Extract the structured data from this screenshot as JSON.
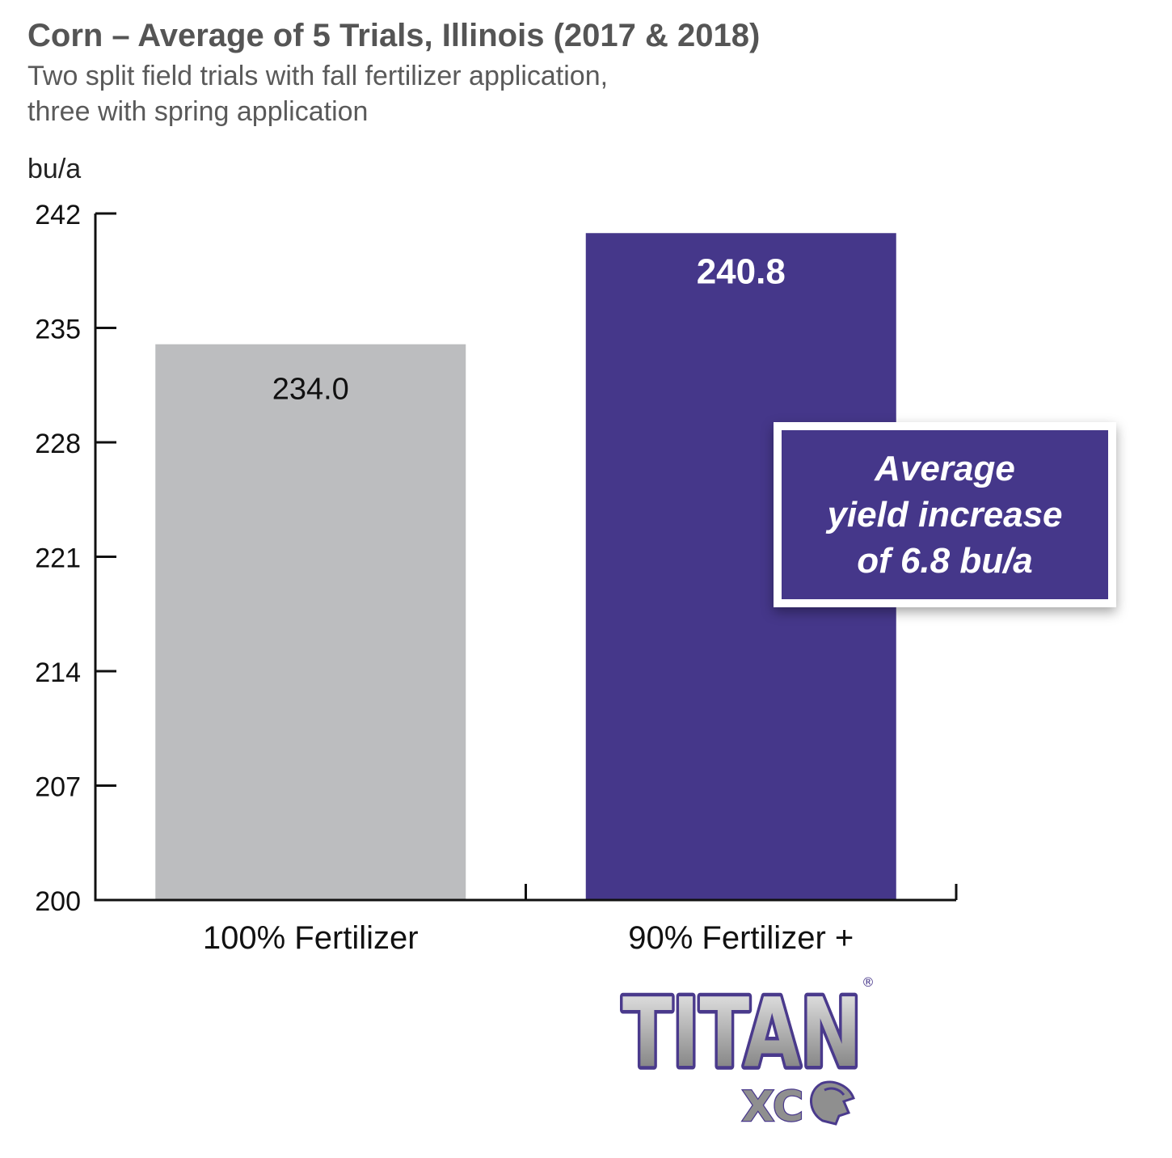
{
  "header": {
    "title": "Corn – Average of 5 Trials, Illinois (2017 & 2018)",
    "subtitle_lines": [
      "Two split field trials with fall fertilizer application,",
      "three with spring application"
    ]
  },
  "callout": {
    "lines": [
      "Average",
      "yield increase",
      "of 6.8 bu/a"
    ],
    "background": "#45378a"
  },
  "logo": {
    "text": "TITAN",
    "sub_text": "XC",
    "registered": "®",
    "outline_color": "#4a3a8c",
    "fill_color": "#a8a8a8"
  },
  "colors": {
    "bar_gray": "#bcbdbf",
    "bar_purple": "#45378a",
    "axis": "#111111"
  },
  "chart_data": {
    "type": "bar",
    "title": "Corn – Average of 5 Trials, Illinois (2017 & 2018)",
    "ylabel": "bu/a",
    "ylim": [
      200,
      242
    ],
    "yticks": [
      200,
      207,
      214,
      221,
      228,
      235,
      242
    ],
    "grid": false,
    "legend": "none",
    "categories": [
      "100% Fertilizer",
      "90% Fertilizer +"
    ],
    "values": [
      234.0,
      240.8
    ],
    "value_labels": [
      "234.0",
      "240.8"
    ],
    "bar_colors": [
      "#bcbdbf",
      "#45378a"
    ]
  }
}
